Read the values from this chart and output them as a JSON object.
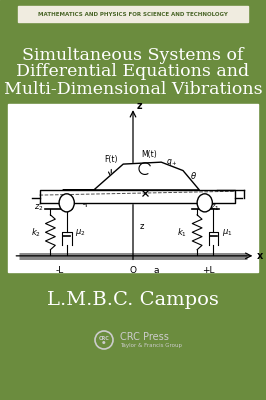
{
  "bg_color": "#6b8c3e",
  "white": "#ffffff",
  "series_banner_bg": "#f0ece0",
  "series_text": "MATHEMATICS AND PHYSICS FOR SCIENCE AND TECHNOLOGY",
  "series_text_color": "#4a6629",
  "title_line1": "Simultaneous Systems of",
  "title_line2": "Differential Equations and",
  "title_line3": "Multi-Dimensional Vibrations",
  "title_color": "#ffffff",
  "diagram_bg": "#ffffff",
  "author": "L.M.B.C. Campos",
  "author_color": "#ffffff",
  "crc_color": "#cccccc"
}
